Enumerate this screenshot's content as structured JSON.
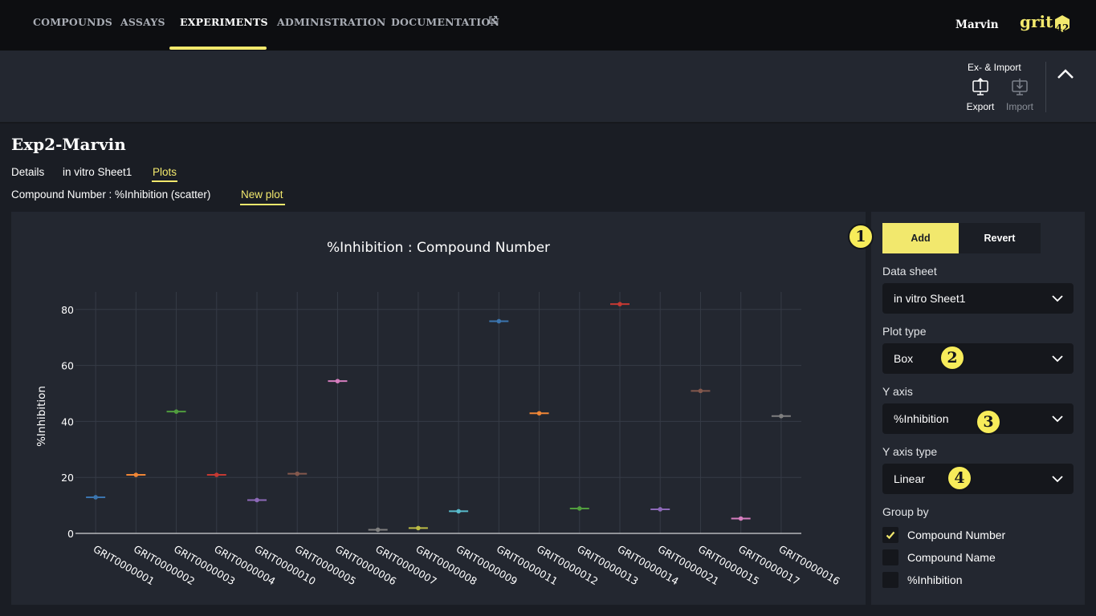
{
  "nav": {
    "items": [
      "COMPOUNDS",
      "ASSAYS",
      "EXPERIMENTS",
      "ADMINISTRATION",
      "DOCUMENTATION"
    ],
    "active": "EXPERIMENTS",
    "user": "Marvin",
    "logo_text": "grit",
    "logo_badge": "42"
  },
  "toolbar": {
    "group_label": "Ex- & Import",
    "export_label": "Export",
    "import_label": "Import"
  },
  "experiment": {
    "title": "Exp2-Marvin",
    "tabs": [
      "Details",
      "in vitro Sheet1",
      "Plots"
    ],
    "active_tab": "Plots",
    "subtabs": [
      "Compound Number : %Inhibition (scatter)",
      "New plot"
    ],
    "active_subtab": "New plot"
  },
  "settings": {
    "add_label": "Add",
    "revert_label": "Revert",
    "data_sheet_label": "Data sheet",
    "data_sheet_value": "in vitro Sheet1",
    "plot_type_label": "Plot type",
    "plot_type_value": "Box",
    "y_axis_label": "Y axis",
    "y_axis_value": "%Inhibition",
    "y_axis_type_label": "Y axis type",
    "y_axis_type_value": "Linear",
    "group_by_label": "Group by",
    "group_by_options": [
      {
        "label": "Compound Number",
        "checked": true
      },
      {
        "label": "Compound Name",
        "checked": false
      },
      {
        "label": "%Inhibition",
        "checked": false
      }
    ]
  },
  "callouts": [
    "1",
    "2",
    "3",
    "4"
  ],
  "chart_data": {
    "type": "box",
    "title": "%Inhibition : Compound Number",
    "xlabel": "",
    "ylabel": "%Inhibition",
    "ylim": [
      0,
      82
    ],
    "yticks": [
      0,
      20,
      40,
      60,
      80
    ],
    "grid": true,
    "legend": "none",
    "categories": [
      "GRIT0000001",
      "GRIT0000002",
      "GRIT0000003",
      "GRIT0000004",
      "GRIT0000010",
      "GRIT0000005",
      "GRIT0000006",
      "GRIT0000007",
      "GRIT0000008",
      "GRIT0000009",
      "GRIT0000011",
      "GRIT0000012",
      "GRIT0000013",
      "GRIT0000014",
      "GRIT0000021",
      "GRIT0000015",
      "GRIT0000017",
      "GRIT0000016"
    ],
    "values": [
      12.9,
      20.9,
      43.5,
      20.9,
      11.9,
      21.3,
      54.4,
      1.3,
      1.9,
      7.9,
      75.8,
      42.9,
      8.9,
      81.9,
      8.6,
      50.9,
      5.3,
      41.9
    ],
    "colors": [
      "#3b75af",
      "#ef8636",
      "#519e3e",
      "#c53932",
      "#8d69b8",
      "#84584d",
      "#d57dbe",
      "#7f7f7f",
      "#bcbc45",
      "#58bbcc",
      "#3b75af",
      "#ef8636",
      "#519e3e",
      "#c53932",
      "#8d69b8",
      "#84584d",
      "#d57dbe",
      "#7f7f7f"
    ]
  }
}
